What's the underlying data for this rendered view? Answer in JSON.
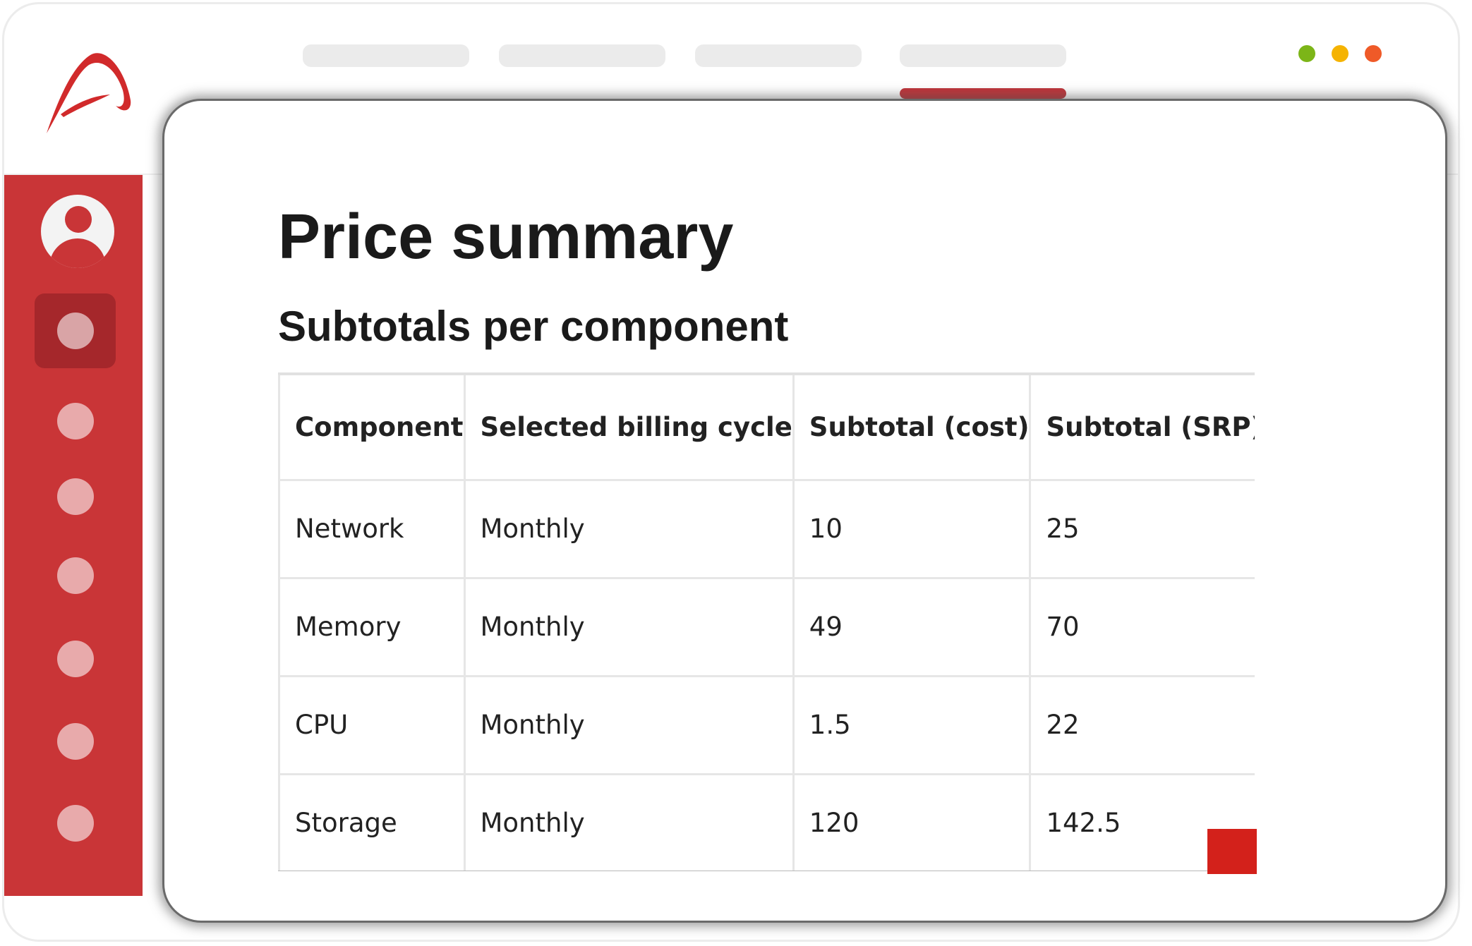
{
  "header": {
    "nav_tabs": [
      "",
      "",
      "",
      ""
    ],
    "active_tab_index": 3,
    "window_controls": [
      {
        "name": "green",
        "color": "#7cb518"
      },
      {
        "name": "yellow",
        "color": "#f5b301"
      },
      {
        "name": "red",
        "color": "#ef5a28"
      }
    ]
  },
  "colors": {
    "brand_red": "#c93537",
    "sidebar_active": "#a5272b",
    "accent_square": "#d3211b"
  },
  "sidebar": {
    "avatar_icon": "user-icon",
    "items": [
      "nav-item",
      "nav-item",
      "nav-item",
      "nav-item",
      "nav-item",
      "nav-item",
      "nav-item"
    ],
    "active_index": 0
  },
  "main": {
    "title": "Price summary",
    "subtitle": "Subtotals per component",
    "table": {
      "headers": [
        "Component",
        "Selected billing cycle",
        "Subtotal (cost)",
        "Subtotal (SRP)"
      ],
      "rows": [
        [
          "Network",
          "Monthly",
          "10",
          "25"
        ],
        [
          "Memory",
          "Monthly",
          "49",
          "70"
        ],
        [
          "CPU",
          "Monthly",
          "1.5",
          "22"
        ],
        [
          "Storage",
          "Monthly",
          "120",
          "142.5"
        ]
      ]
    }
  }
}
